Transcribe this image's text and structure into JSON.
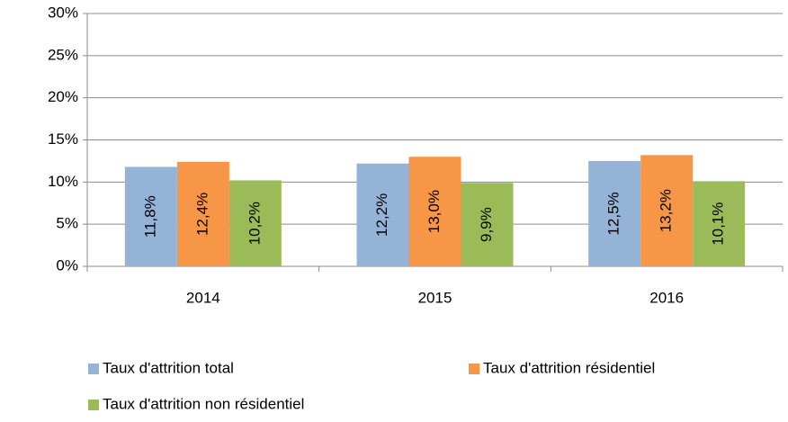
{
  "chart_data": {
    "type": "bar",
    "categories": [
      "2014",
      "2015",
      "2016"
    ],
    "series": [
      {
        "name": "Taux d'attrition total",
        "color": "#95b3d7",
        "values": [
          11.8,
          12.2,
          12.5
        ],
        "value_labels": [
          "11,8%",
          "12,2%",
          "12,5%"
        ]
      },
      {
        "name": "Taux d'attrition résidentiel",
        "color": "#f79646",
        "values": [
          12.4,
          13.0,
          13.2
        ],
        "value_labels": [
          "12,4%",
          "13,0%",
          "13,2%"
        ]
      },
      {
        "name": "Taux d'attrition non résidentiel",
        "color": "#9bbb59",
        "values": [
          10.2,
          9.9,
          10.1
        ],
        "value_labels": [
          "10,2%",
          "9,9%",
          "10,1%"
        ]
      }
    ],
    "ylim": [
      0,
      30
    ],
    "yticks": [
      {
        "value": 0,
        "label": "0%"
      },
      {
        "value": 5,
        "label": "5%"
      },
      {
        "value": 10,
        "label": "10%"
      },
      {
        "value": 15,
        "label": "15%"
      },
      {
        "value": 20,
        "label": "20%"
      },
      {
        "value": 25,
        "label": "25%"
      },
      {
        "value": 30,
        "label": "30%"
      }
    ],
    "grid": true,
    "legend": "bottom"
  }
}
